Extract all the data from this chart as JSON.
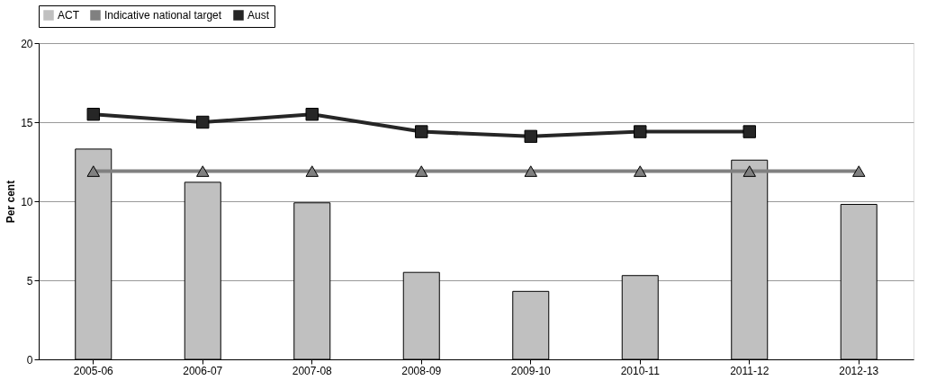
{
  "chart_data": {
    "type": "bar",
    "ylabel": "Per cent",
    "categories": [
      "2005-06",
      "2006-07",
      "2007-08",
      "2008-09",
      "2009-10",
      "2010-11",
      "2011-12",
      "2012-13"
    ],
    "series": [
      {
        "name": "ACT",
        "color": "#c0c0c0",
        "values": [
          13.3,
          11.2,
          9.9,
          5.5,
          4.3,
          5.3,
          12.6,
          9.8
        ]
      },
      {
        "name": "Indicative national target",
        "type": "line",
        "marker": "triangle",
        "color": "#808080",
        "values": [
          11.9,
          11.9,
          11.9,
          11.9,
          11.9,
          11.9,
          11.9,
          11.9
        ]
      },
      {
        "name": "Aust",
        "type": "line",
        "marker": "square",
        "color": "#262626",
        "values": [
          15.5,
          15.0,
          15.5,
          14.4,
          14.1,
          14.4,
          14.4,
          null
        ]
      }
    ],
    "ylim": [
      0,
      20
    ],
    "yticks": [
      0,
      5,
      10,
      15,
      20
    ],
    "grid": "y",
    "legend": "top"
  }
}
